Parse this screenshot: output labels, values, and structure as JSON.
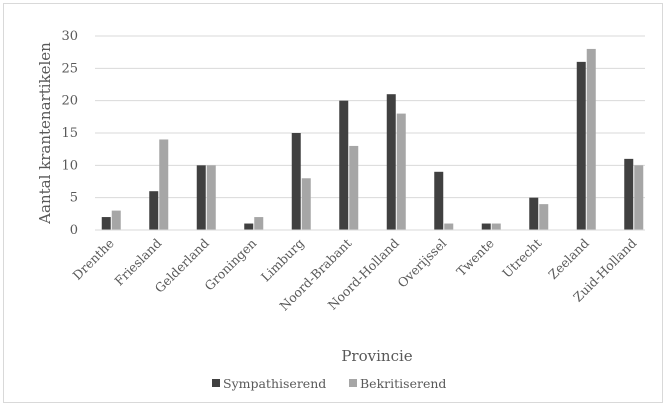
{
  "chart_data": {
    "type": "bar",
    "title": "",
    "xlabel": "Provincie",
    "ylabel": "Aantal krantenartikelen",
    "ylim": [
      0,
      30
    ],
    "yticks": [
      0,
      5,
      10,
      15,
      20,
      25,
      30
    ],
    "grid": true,
    "legend_position": "bottom",
    "categories": [
      "Drenthe",
      "Friesland",
      "Gelderland",
      "Groningen",
      "Limburg",
      "Noord-Brabant",
      "Noord-Holland",
      "Overijssel",
      "Twente",
      "Utrecht",
      "Zeeland",
      "Zuid-Holland"
    ],
    "series": [
      {
        "name": "Sympathiserend",
        "color": "#404040",
        "values": [
          2,
          6,
          10,
          1,
          15,
          20,
          21,
          9,
          1,
          5,
          26,
          11
        ]
      },
      {
        "name": "Bekritiserend",
        "color": "#a6a6a6",
        "values": [
          3,
          14,
          10,
          2,
          8,
          13,
          18,
          1,
          1,
          4,
          28,
          10
        ]
      }
    ]
  }
}
